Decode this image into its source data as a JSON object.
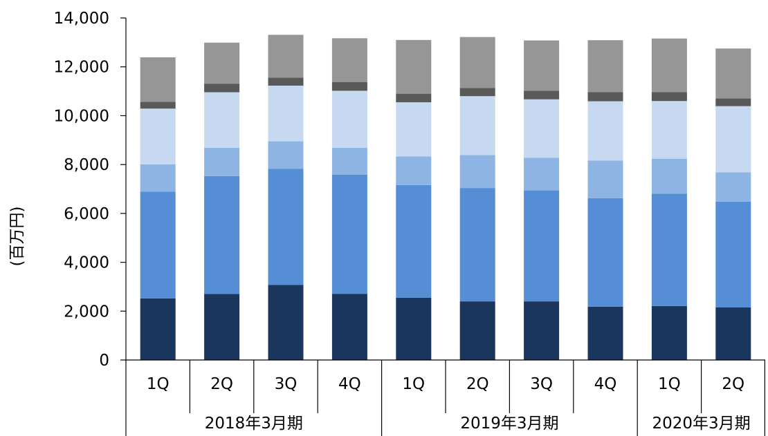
{
  "chart_data": {
    "type": "bar",
    "stacked": true,
    "title": "",
    "xlabel": "",
    "ylabel": "(百万円)",
    "ylim": [
      0,
      14000
    ],
    "yticks": [
      "0",
      "2,000",
      "4,000",
      "6,000",
      "8,000",
      "10,000",
      "12,000",
      "14,000"
    ],
    "ytick_values": [
      0,
      2000,
      4000,
      6000,
      8000,
      10000,
      12000,
      14000
    ],
    "grid": false,
    "legend": "none",
    "categories": [
      "1Q",
      "2Q",
      "3Q",
      "4Q",
      "1Q",
      "2Q",
      "3Q",
      "4Q",
      "1Q",
      "2Q"
    ],
    "groups": [
      {
        "label": "2018年3月期",
        "count": 4
      },
      {
        "label": "2019年3月期",
        "count": 4
      },
      {
        "label": "2020年3月期",
        "count": 2
      }
    ],
    "series": [
      {
        "color": "#1b365d",
        "values": [
          2520,
          2700,
          3070,
          2710,
          2550,
          2400,
          2400,
          2180,
          2210,
          2150
        ]
      },
      {
        "color": "#558ed5",
        "values": [
          4370,
          4830,
          4750,
          4880,
          4610,
          4640,
          4540,
          4440,
          4600,
          4330
        ]
      },
      {
        "color": "#8eb4e3",
        "values": [
          1120,
          1160,
          1130,
          1100,
          1170,
          1350,
          1340,
          1540,
          1430,
          1200
        ]
      },
      {
        "color": "#c6d9f1",
        "values": [
          2280,
          2270,
          2280,
          2330,
          2220,
          2410,
          2390,
          2430,
          2360,
          2710
        ]
      },
      {
        "color": "#595959",
        "values": [
          280,
          350,
          330,
          360,
          350,
          330,
          350,
          370,
          360,
          320
        ]
      },
      {
        "color": "#969696",
        "values": [
          1820,
          1680,
          1750,
          1790,
          2200,
          2090,
          2060,
          2130,
          2200,
          2040
        ]
      }
    ]
  }
}
